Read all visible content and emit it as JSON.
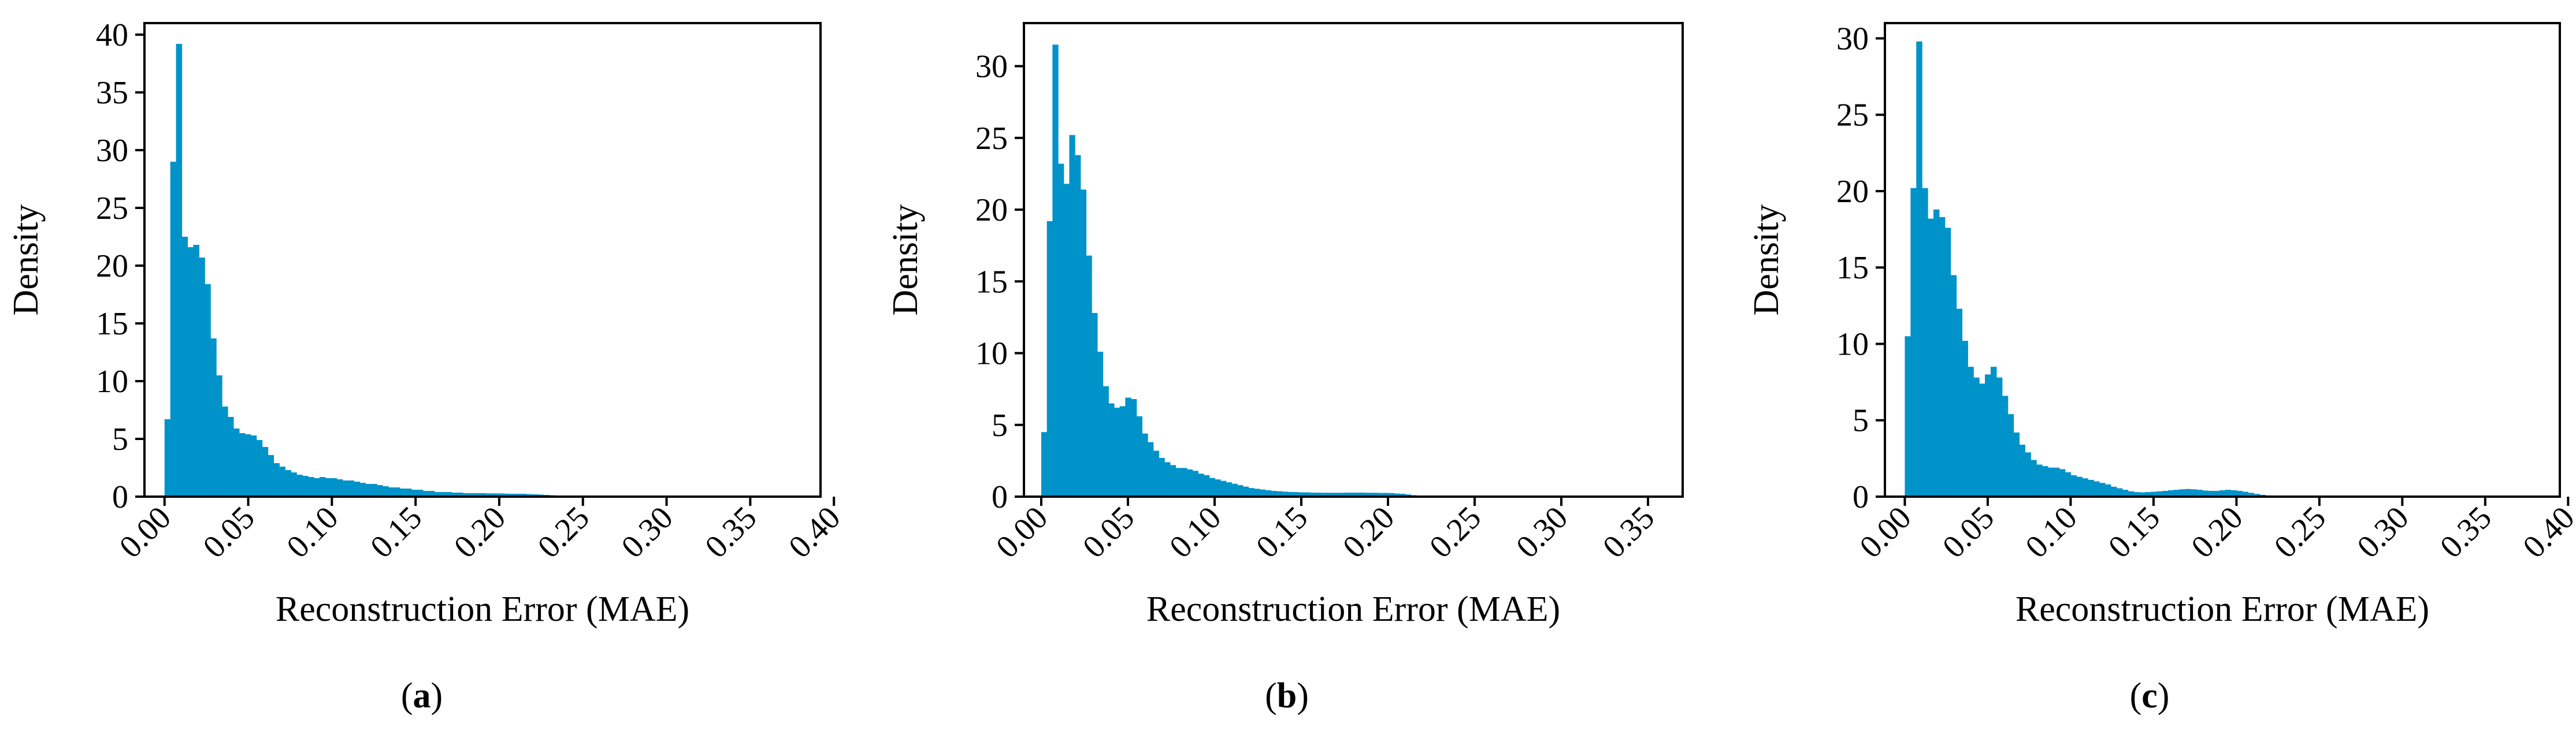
{
  "chart_data": [
    {
      "type": "histogram",
      "panel_label": "a",
      "xlabel": "Reconstruction Error (MAE)",
      "ylabel": "Density",
      "xlim": [
        -0.012,
        0.392
      ],
      "ylim": [
        0,
        41
      ],
      "x_ticks": [
        0.0,
        0.05,
        0.1,
        0.15,
        0.2,
        0.25,
        0.3,
        0.35,
        0.4
      ],
      "x_tick_labels": [
        "0.00",
        "0.05",
        "0.10",
        "0.15",
        "0.20",
        "0.25",
        "0.30",
        "0.35",
        "0.40"
      ],
      "y_ticks": [
        0,
        5,
        10,
        15,
        20,
        25,
        30,
        35,
        40
      ],
      "y_tick_labels": [
        "0",
        "5",
        "10",
        "15",
        "20",
        "25",
        "30",
        "35",
        "40"
      ],
      "color": "#0093c9",
      "bin_start": 0.0,
      "bin_width": 0.00343,
      "values": [
        6.7,
        29,
        39.2,
        22.5,
        21.6,
        21.8,
        20.7,
        18.4,
        13.7,
        10.5,
        7.8,
        6.9,
        5.9,
        5.5,
        5.4,
        5.3,
        4.9,
        4.3,
        3.6,
        2.9,
        2.6,
        2.3,
        2.1,
        1.9,
        1.8,
        1.7,
        1.6,
        1.7,
        1.6,
        1.6,
        1.5,
        1.4,
        1.4,
        1.3,
        1.2,
        1.1,
        1.1,
        1.0,
        0.9,
        0.8,
        0.8,
        0.7,
        0.7,
        0.6,
        0.6,
        0.5,
        0.5,
        0.4,
        0.4,
        0.4,
        0.35,
        0.35,
        0.3,
        0.3,
        0.3,
        0.3,
        0.28,
        0.28,
        0.28,
        0.26,
        0.25,
        0.25,
        0.25,
        0.22,
        0.2,
        0.18,
        0.15,
        0.12,
        0.1,
        0.1,
        0.09,
        0.08,
        0.08,
        0.07,
        0.07,
        0.06,
        0.06,
        0.05,
        0.05,
        0.05,
        0.05,
        0.04,
        0.04,
        0.04,
        0.04,
        0.04,
        0.03,
        0.03,
        0.03,
        0.03,
        0.03,
        0.03,
        0.03,
        0.03,
        0.03,
        0.03,
        0.03,
        0.03,
        0.03,
        0.03,
        0.03,
        0.03,
        0.03,
        0.03,
        0.03,
        0.03,
        0.03,
        0.03,
        0.03,
        0.03,
        0.03,
        0.03,
        0.03
      ]
    },
    {
      "type": "histogram",
      "panel_label": "b",
      "xlabel": "Reconstruction Error (MAE)",
      "ylabel": "Density",
      "xlim": [
        -0.01,
        0.37
      ],
      "ylim": [
        0,
        33
      ],
      "x_ticks": [
        0.0,
        0.05,
        0.1,
        0.15,
        0.2,
        0.25,
        0.3,
        0.35
      ],
      "x_tick_labels": [
        "0.00",
        "0.05",
        "0.10",
        "0.15",
        "0.20",
        "0.25",
        "0.30",
        "0.35"
      ],
      "y_ticks": [
        0,
        5,
        10,
        15,
        20,
        25,
        30
      ],
      "y_tick_labels": [
        "0",
        "5",
        "10",
        "15",
        "20",
        "25",
        "30"
      ],
      "color": "#0093c9",
      "bin_start": 0.0,
      "bin_width": 0.00323,
      "values": [
        4.5,
        19.2,
        31.5,
        23.2,
        21.8,
        25.2,
        23.8,
        21.4,
        16.8,
        12.8,
        10.1,
        7.7,
        6.5,
        6.2,
        6.3,
        6.9,
        6.8,
        5.6,
        4.4,
        3.8,
        3.2,
        2.7,
        2.4,
        2.2,
        2.0,
        2.0,
        1.9,
        1.8,
        1.6,
        1.5,
        1.3,
        1.2,
        1.1,
        1.0,
        0.9,
        0.8,
        0.7,
        0.6,
        0.55,
        0.5,
        0.45,
        0.4,
        0.38,
        0.35,
        0.33,
        0.32,
        0.3,
        0.3,
        0.28,
        0.28,
        0.27,
        0.27,
        0.27,
        0.27,
        0.28,
        0.28,
        0.28,
        0.28,
        0.27,
        0.27,
        0.26,
        0.26,
        0.25,
        0.22,
        0.2,
        0.15,
        0.1,
        0.08,
        0.07,
        0.06,
        0.05,
        0.05,
        0.05,
        0.04,
        0.04,
        0.04,
        0.04,
        0.04,
        0.04,
        0.04,
        0.04,
        0.04,
        0.03,
        0.03,
        0.03,
        0.03,
        0.03,
        0.03,
        0.03,
        0.03,
        0.03,
        0.03,
        0.03,
        0.03,
        0.03,
        0.03,
        0.03,
        0.03,
        0.03,
        0.03,
        0.03,
        0.03,
        0.03,
        0.03,
        0.03,
        0.03,
        0.03,
        0.03,
        0.03,
        0.03,
        0.03
      ]
    },
    {
      "type": "histogram",
      "panel_label": "c",
      "xlabel": "Reconstruction Error (MAE)",
      "ylabel": "Density",
      "xlim": [
        -0.012,
        0.395
      ],
      "ylim": [
        0,
        31
      ],
      "x_ticks": [
        0.0,
        0.05,
        0.1,
        0.15,
        0.2,
        0.25,
        0.3,
        0.35,
        0.4
      ],
      "x_tick_labels": [
        "0.00",
        "0.05",
        "0.10",
        "0.15",
        "0.20",
        "0.25",
        "0.30",
        "0.35",
        "0.40"
      ],
      "y_ticks": [
        0,
        5,
        10,
        15,
        20,
        25,
        30
      ],
      "y_tick_labels": [
        "0",
        "5",
        "10",
        "15",
        "20",
        "25",
        "30"
      ],
      "color": "#0093c9",
      "bin_start": 0.0,
      "bin_width": 0.00345,
      "values": [
        10.5,
        20.2,
        29.8,
        20.2,
        18.2,
        18.8,
        18.3,
        17.6,
        14.5,
        12.3,
        10.2,
        8.5,
        7.8,
        7.4,
        8.0,
        8.5,
        7.8,
        6.6,
        5.4,
        4.2,
        3.4,
        2.9,
        2.4,
        2.1,
        2.0,
        1.9,
        1.9,
        1.8,
        1.6,
        1.4,
        1.3,
        1.2,
        1.1,
        1.0,
        0.9,
        0.8,
        0.65,
        0.55,
        0.45,
        0.35,
        0.3,
        0.28,
        0.3,
        0.32,
        0.35,
        0.38,
        0.42,
        0.45,
        0.48,
        0.5,
        0.48,
        0.45,
        0.4,
        0.38,
        0.38,
        0.42,
        0.45,
        0.42,
        0.38,
        0.32,
        0.25,
        0.18,
        0.12,
        0.08,
        0.07,
        0.06,
        0.05,
        0.05,
        0.04,
        0.04,
        0.04,
        0.04,
        0.04,
        0.04,
        0.04,
        0.04,
        0.04,
        0.04,
        0.04,
        0.04,
        0.04,
        0.03,
        0.03,
        0.03,
        0.03,
        0.03,
        0.03,
        0.03,
        0.03,
        0.03,
        0.03,
        0.03,
        0.03,
        0.03,
        0.03,
        0.03,
        0.03,
        0.03,
        0.03,
        0.03,
        0.03,
        0.03,
        0.03,
        0.03,
        0.03,
        0.03,
        0.03,
        0.03,
        0.03,
        0.03,
        0.03,
        0.03,
        0.03
      ]
    }
  ],
  "captions": [
    {
      "open": "(",
      "letter": "a",
      "close": ")"
    },
    {
      "open": "(",
      "letter": "b",
      "close": ")"
    },
    {
      "open": "(",
      "letter": "c",
      "close": ")"
    }
  ]
}
